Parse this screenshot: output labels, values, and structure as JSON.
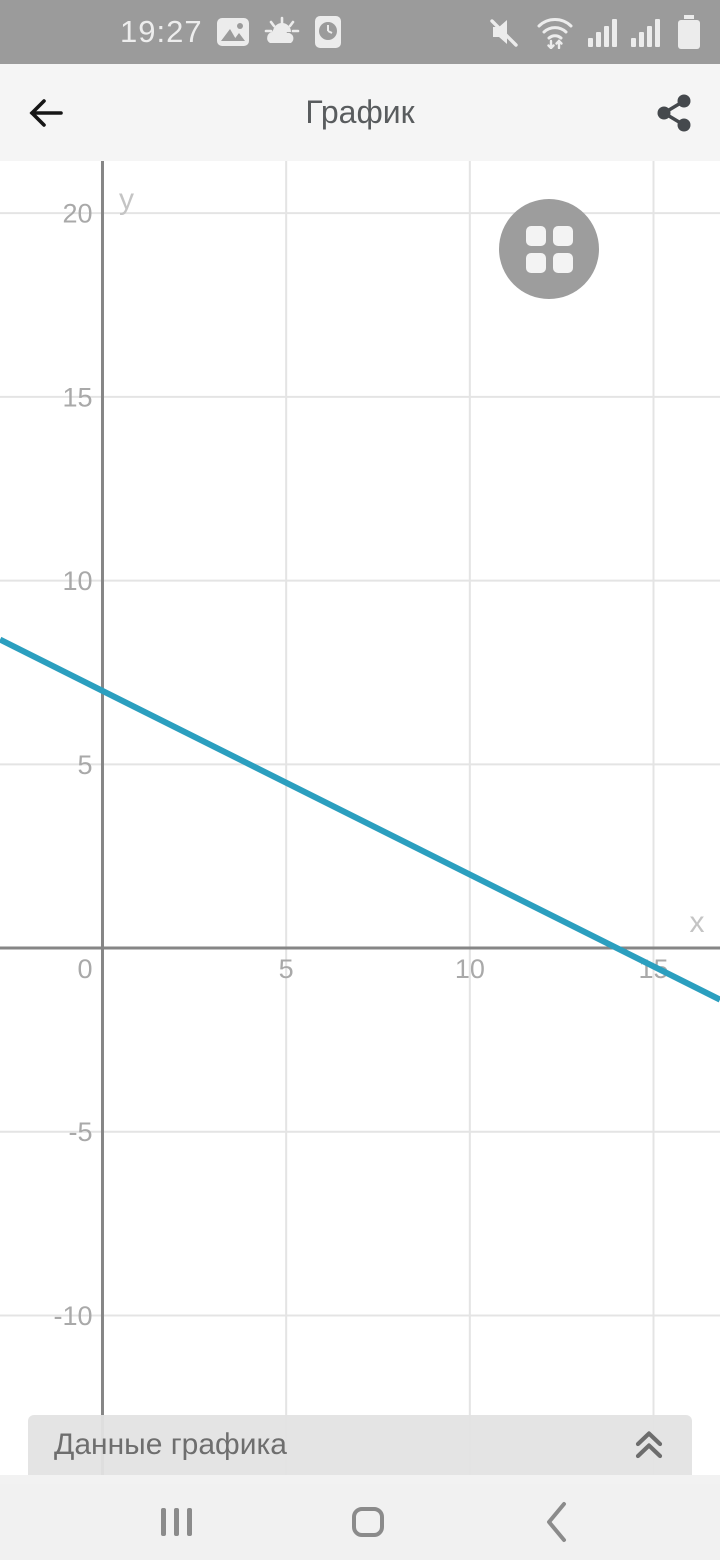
{
  "status_bar": {
    "time": "19:27",
    "left_icons": [
      "gallery-icon",
      "weather-icon",
      "clock-app-icon"
    ],
    "right_icons": [
      "mute-icon",
      "wifi-icon",
      "signal-icon",
      "signal-icon",
      "battery-icon"
    ]
  },
  "app_bar": {
    "title": "График",
    "left_icon": "back-arrow-icon",
    "right_icon": "share-icon"
  },
  "chart_data": {
    "type": "line",
    "title": "График",
    "xlabel": "x",
    "ylabel": "y",
    "x_ticks": [
      5,
      10,
      15
    ],
    "y_ticks": [
      20,
      15,
      10,
      5,
      -5,
      -10
    ],
    "origin_label": "0",
    "x_range": [
      -2.79,
      16.81
    ],
    "y_range": [
      -14.56,
      21.42
    ],
    "grid": true,
    "legend": "none",
    "series": [
      {
        "name": "y = 7 - 0.5x",
        "slope": -0.5,
        "intercept": 7,
        "x_intercept": 14,
        "color": "#2b9fbf"
      }
    ],
    "colors": {
      "grid": "#e4e4e4",
      "axis": "#868686",
      "tick_label": "#a9a9a9",
      "axis_letter": "#c4c4c4"
    }
  },
  "bottom_sheet": {
    "label": "Данные графика",
    "icon": "chevrons-up-icon"
  },
  "nav_bar": {
    "buttons": [
      "recents",
      "home",
      "back"
    ]
  }
}
